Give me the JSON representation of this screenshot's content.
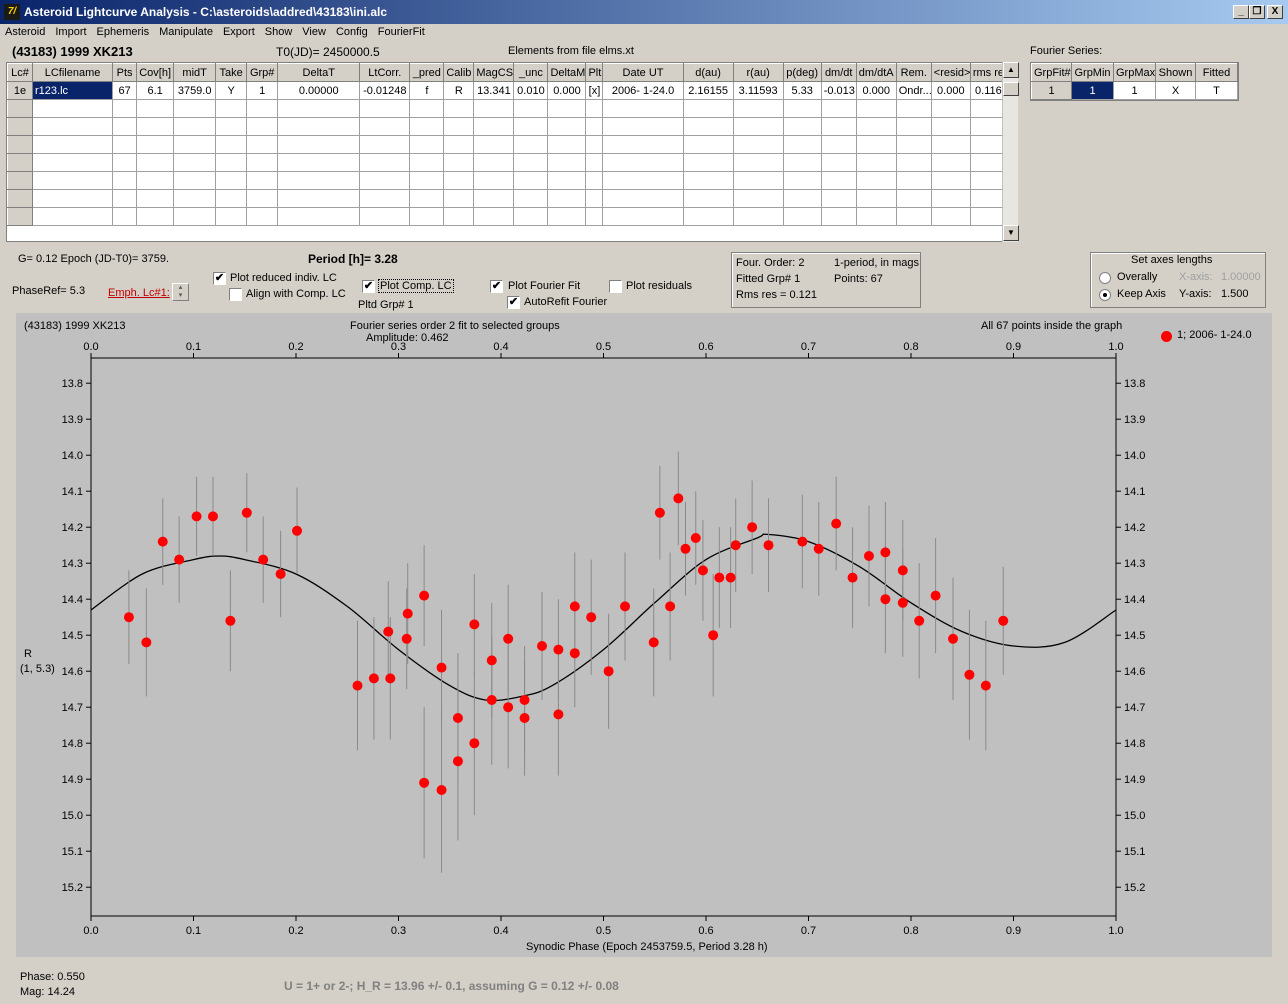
{
  "window": {
    "title": "Asteroid Lightcurve Analysis - C:\\asteroids\\addred\\43183\\ini.alc",
    "icon": "app-logo-icon",
    "buttons": [
      "_",
      "❐",
      "X"
    ]
  },
  "menu": [
    "Asteroid",
    "Import",
    "Ephemeris",
    "Manipulate",
    "Export",
    "Show",
    "View",
    "Config",
    "FourierFit"
  ],
  "header": {
    "asteroid": "(43183) 1999 XK213",
    "t0": "T0(JD)= 2450000.5",
    "elements": "Elements from file elms.xt"
  },
  "main_grid": {
    "columns": [
      "Lc#",
      "LCfilename",
      "Pts",
      "Cov[h]",
      "midT",
      "Take",
      "Grp#",
      "DeltaT",
      "LtCorr.",
      "_pred",
      "Calib",
      "MagCS",
      "_unc",
      "DeltaM",
      "Plt",
      "Date UT",
      "d(au)",
      "r(au)",
      "p(deg)",
      "dm/dt",
      "dm/dtA",
      "Rem.",
      "<resid>",
      "rms res"
    ],
    "row": [
      "1e",
      "r123.lc",
      "67",
      "6.1",
      "3759.0",
      "Y",
      "1",
      "0.00000",
      "-0.01248",
      "f",
      "R",
      "13.341",
      "0.010",
      "0.000",
      "[x]",
      "2006- 1-24.0",
      "2.16155",
      "3.11593",
      "5.33",
      "-0.013",
      "0.000",
      "Ondr...",
      "0.000",
      "0.116"
    ]
  },
  "fourier_series": {
    "title": "Fourier Series:",
    "columns": [
      "GrpFit#",
      "GrpMin",
      "GrpMax",
      "Shown",
      "Fitted"
    ],
    "row": [
      "1",
      "1",
      "1",
      "X",
      "T"
    ]
  },
  "controls": {
    "g_epoch": "G= 0.12   Epoch (JD-T0)= 3759.",
    "period": "Period [h]= 3.28",
    "phase_ref": "PhaseRef= 5.3",
    "emph_lc": "Emph. Lc#1:",
    "plot_reduced": "Plot reduced indiv. LC",
    "align_comp": "Align with Comp. LC",
    "plot_comp": "Plot Comp. LC",
    "pltd_grp": "Pltd Grp#  1",
    "plot_fourier": "Plot Fourier Fit",
    "autorefit": "AutoRefit Fourier",
    "plot_residuals": "Plot residuals",
    "checks": {
      "plot_reduced": true,
      "align_comp": false,
      "plot_comp": true,
      "plot_fourier": true,
      "autorefit": true,
      "plot_residuals": false
    }
  },
  "fourier_info": {
    "order": "Four. Order:  2",
    "fitted_grp": "Fitted Grp# 1",
    "rms": "Rms res     = 0.121",
    "mode": "1-period, in mags",
    "points": "Points: 67"
  },
  "axes_lengths": {
    "title": "Set axes lengths",
    "overally": "Overally",
    "keep_axis": "Keep Axis",
    "x_axis_label": "X-axis:",
    "x_axis_value": "1.00000",
    "y_axis_label": "Y-axis:",
    "y_axis_value": "1.500",
    "selected": "Keep Axis"
  },
  "plot_header": {
    "object": "(43183) 1999 XK213",
    "fit_title": "Fourier series order 2 fit to selected groups",
    "amplitude": "Amplitude: 0.462",
    "points_note": "All 67 points inside the graph",
    "legend": "1; 2006- 1-24.0",
    "ylabel_line1": "R",
    "ylabel_line2": "(1, 5.3)",
    "xlabel": "Synodic Phase (Epoch 2453759.5, Period 3.28 h)"
  },
  "footer": {
    "phase": "Phase:  0.550",
    "mag": "Mag:    14.24",
    "note": "U = 1+ or 2-; H_R = 13.96 +/- 0.1, assuming G = 0.12 +/- 0.08"
  },
  "colors": {
    "points": "#ff0000",
    "plot_bg": "#c0c0c0",
    "title_dark": "#0a246a"
  },
  "chart_data": {
    "type": "scatter",
    "x_ticks": [
      "0.0",
      "0.1",
      "0.2",
      "0.3",
      "0.4",
      "0.5",
      "0.6",
      "0.7",
      "0.8",
      "0.9",
      "1.0"
    ],
    "y_ticks": [
      "13.8",
      "13.9",
      "14.0",
      "14.1",
      "14.2",
      "14.3",
      "14.4",
      "14.5",
      "14.6",
      "14.7",
      "14.8",
      "14.9",
      "15.0",
      "15.1",
      "15.2"
    ],
    "xlim": [
      0.0,
      1.0
    ],
    "ylim": [
      13.73,
      15.28
    ],
    "y_inverted": true,
    "series": [
      {
        "name": "1; 2006- 1-24.0",
        "points": [
          [
            0.037,
            14.45,
            0.13
          ],
          [
            0.054,
            14.52,
            0.15
          ],
          [
            0.07,
            14.24,
            0.12
          ],
          [
            0.086,
            14.29,
            0.12
          ],
          [
            0.103,
            14.17,
            0.11
          ],
          [
            0.119,
            14.17,
            0.11
          ],
          [
            0.136,
            14.46,
            0.14
          ],
          [
            0.152,
            14.16,
            0.11
          ],
          [
            0.168,
            14.29,
            0.12
          ],
          [
            0.185,
            14.33,
            0.12
          ],
          [
            0.201,
            14.21,
            0.12
          ],
          [
            0.26,
            14.64,
            0.18
          ],
          [
            0.276,
            14.62,
            0.17
          ],
          [
            0.29,
            14.49,
            0.14
          ],
          [
            0.292,
            14.62,
            0.17
          ],
          [
            0.308,
            14.51,
            0.14
          ],
          [
            0.309,
            14.44,
            0.14
          ],
          [
            0.325,
            14.39,
            0.14
          ],
          [
            0.325,
            14.91,
            0.21
          ],
          [
            0.342,
            14.59,
            0.16
          ],
          [
            0.342,
            14.93,
            0.23
          ],
          [
            0.358,
            14.73,
            0.18
          ],
          [
            0.358,
            14.85,
            0.22
          ],
          [
            0.374,
            14.8,
            0.2
          ],
          [
            0.374,
            14.47,
            0.14
          ],
          [
            0.391,
            14.68,
            0.18
          ],
          [
            0.391,
            14.57,
            0.16
          ],
          [
            0.407,
            14.51,
            0.15
          ],
          [
            0.407,
            14.7,
            0.17
          ],
          [
            0.423,
            14.68,
            0.15
          ],
          [
            0.423,
            14.73,
            0.16
          ],
          [
            0.44,
            14.53,
            0.15
          ],
          [
            0.456,
            14.54,
            0.14
          ],
          [
            0.456,
            14.72,
            0.17
          ],
          [
            0.472,
            14.42,
            0.15
          ],
          [
            0.472,
            14.55,
            0.15
          ],
          [
            0.488,
            14.45,
            0.16
          ],
          [
            0.505,
            14.6,
            0.16
          ],
          [
            0.521,
            14.42,
            0.15
          ],
          [
            0.549,
            14.52,
            0.15
          ],
          [
            0.555,
            14.16,
            0.13
          ],
          [
            0.565,
            14.42,
            0.15
          ],
          [
            0.573,
            14.12,
            0.13
          ],
          [
            0.58,
            14.26,
            0.13
          ],
          [
            0.59,
            14.23,
            0.13
          ],
          [
            0.597,
            14.32,
            0.14
          ],
          [
            0.607,
            14.5,
            0.17
          ],
          [
            0.613,
            14.34,
            0.14
          ],
          [
            0.624,
            14.34,
            0.14
          ],
          [
            0.629,
            14.25,
            0.13
          ],
          [
            0.645,
            14.2,
            0.13
          ],
          [
            0.661,
            14.25,
            0.13
          ],
          [
            0.694,
            14.24,
            0.13
          ],
          [
            0.71,
            14.26,
            0.13
          ],
          [
            0.727,
            14.19,
            0.13
          ],
          [
            0.743,
            14.34,
            0.14
          ],
          [
            0.759,
            14.28,
            0.14
          ],
          [
            0.775,
            14.27,
            0.14
          ],
          [
            0.775,
            14.4,
            0.15
          ],
          [
            0.792,
            14.32,
            0.14
          ],
          [
            0.792,
            14.41,
            0.15
          ],
          [
            0.808,
            14.46,
            0.16
          ],
          [
            0.824,
            14.39,
            0.16
          ],
          [
            0.841,
            14.51,
            0.17
          ],
          [
            0.857,
            14.61,
            0.18
          ],
          [
            0.873,
            14.64,
            0.18
          ],
          [
            0.89,
            14.46,
            0.15
          ]
        ]
      }
    ],
    "fourier_fit": {
      "mean": 14.455,
      "amplitude": 0.462,
      "order": 2,
      "curve": [
        [
          0.0,
          14.43
        ],
        [
          0.05,
          14.33
        ],
        [
          0.1,
          14.29
        ],
        [
          0.125,
          14.28
        ],
        [
          0.15,
          14.29
        ],
        [
          0.2,
          14.33
        ],
        [
          0.25,
          14.42
        ],
        [
          0.3,
          14.54
        ],
        [
          0.35,
          14.64
        ],
        [
          0.385,
          14.68
        ],
        [
          0.42,
          14.67
        ],
        [
          0.45,
          14.64
        ],
        [
          0.5,
          14.54
        ],
        [
          0.55,
          14.41
        ],
        [
          0.6,
          14.29
        ],
        [
          0.65,
          14.23
        ],
        [
          0.66,
          14.22
        ],
        [
          0.7,
          14.24
        ],
        [
          0.75,
          14.31
        ],
        [
          0.8,
          14.41
        ],
        [
          0.85,
          14.49
        ],
        [
          0.9,
          14.53
        ],
        [
          0.95,
          14.52
        ],
        [
          1.0,
          14.43
        ]
      ]
    }
  }
}
